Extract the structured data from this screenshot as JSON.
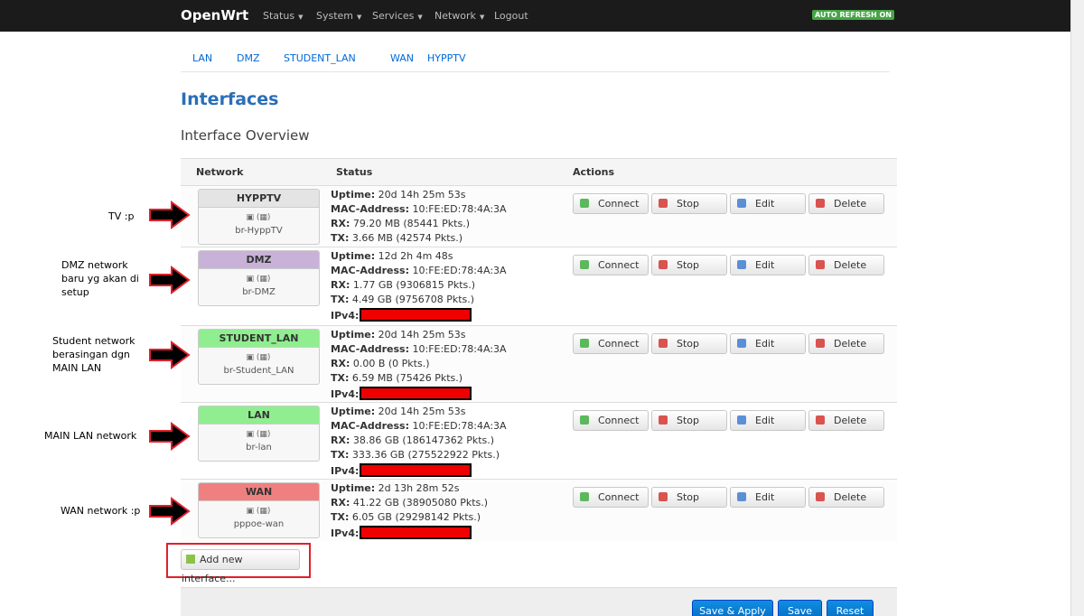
{
  "navbar": {
    "brand": "OpenWrt",
    "menu": [
      "Status",
      "System",
      "Services",
      "Network",
      "Logout"
    ],
    "badge": "AUTO REFRESH ON"
  },
  "tabs": [
    "LAN",
    "DMZ",
    "STUDENT_LAN",
    "WAN",
    "HYPPTV"
  ],
  "page_title": "Interfaces",
  "section_title": "Interface Overview",
  "table": {
    "headers": [
      "Network",
      "Status",
      "Actions"
    ],
    "actions": [
      "Connect",
      "Stop",
      "Edit",
      "Delete"
    ],
    "rows": [
      {
        "name": "HYPPTV",
        "color": "#e4e4e4",
        "device": "br-HyppTV",
        "status": [
          {
            "label": "Uptime:",
            "value": "20d 14h 25m 53s"
          },
          {
            "label": "MAC-Address:",
            "value": "10:FE:ED:78:4A:3A"
          },
          {
            "label": "RX:",
            "value": "79.20 MB (85441 Pkts.)"
          },
          {
            "label": "TX:",
            "value": "3.66 MB (42574 Pkts.)"
          }
        ]
      },
      {
        "name": "DMZ",
        "color": "#c8b2d8",
        "device": "br-DMZ",
        "status": [
          {
            "label": "Uptime:",
            "value": "12d 2h 4m 48s"
          },
          {
            "label": "MAC-Address:",
            "value": "10:FE:ED:78:4A:3A"
          },
          {
            "label": "RX:",
            "value": "1.77 GB (9306815 Pkts.)"
          },
          {
            "label": "TX:",
            "value": "4.49 GB (9756708 Pkts.)"
          },
          {
            "label": "IPv4:"
          }
        ]
      },
      {
        "name": "STUDENT_LAN",
        "color": "#90ee90",
        "device": "br-Student_LAN",
        "status": [
          {
            "label": "Uptime:",
            "value": "20d 14h 25m 53s"
          },
          {
            "label": "MAC-Address:",
            "value": "10:FE:ED:78:4A:3A"
          },
          {
            "label": "RX:",
            "value": "0.00 B (0 Pkts.)"
          },
          {
            "label": "TX:",
            "value": "6.59 MB (75426 Pkts.)"
          },
          {
            "label": "IPv4:"
          }
        ]
      },
      {
        "name": "LAN",
        "color": "#90ee90",
        "device": "br-lan",
        "status": [
          {
            "label": "Uptime:",
            "value": "20d 14h 25m 53s"
          },
          {
            "label": "MAC-Address:",
            "value": "10:FE:ED:78:4A:3A"
          },
          {
            "label": "RX:",
            "value": "38.86 GB (186147362 Pkts.)"
          },
          {
            "label": "TX:",
            "value": "333.36 GB (275522922 Pkts.)"
          },
          {
            "label": "IPv4:"
          }
        ]
      },
      {
        "name": "WAN",
        "color": "#f08080",
        "device": "pppoe-wan",
        "status": [
          {
            "label": "Uptime:",
            "value": "2d 13h 28m 52s"
          },
          {
            "label": "RX:",
            "value": "41.22 GB (38905080 Pkts.)"
          },
          {
            "label": "TX:",
            "value": "6.05 GB (29298142 Pkts.)"
          },
          {
            "label": "IPv4:"
          }
        ]
      }
    ]
  },
  "add_button": "Add new interface...",
  "footer_buttons": [
    "Save & Apply",
    "Save",
    "Reset"
  ],
  "annotations": [
    "TV :p",
    "DMZ network baru yg akan di setup",
    "Student network berasingan dgn MAIN LAN",
    "MAIN LAN network",
    "WAN network :p"
  ]
}
